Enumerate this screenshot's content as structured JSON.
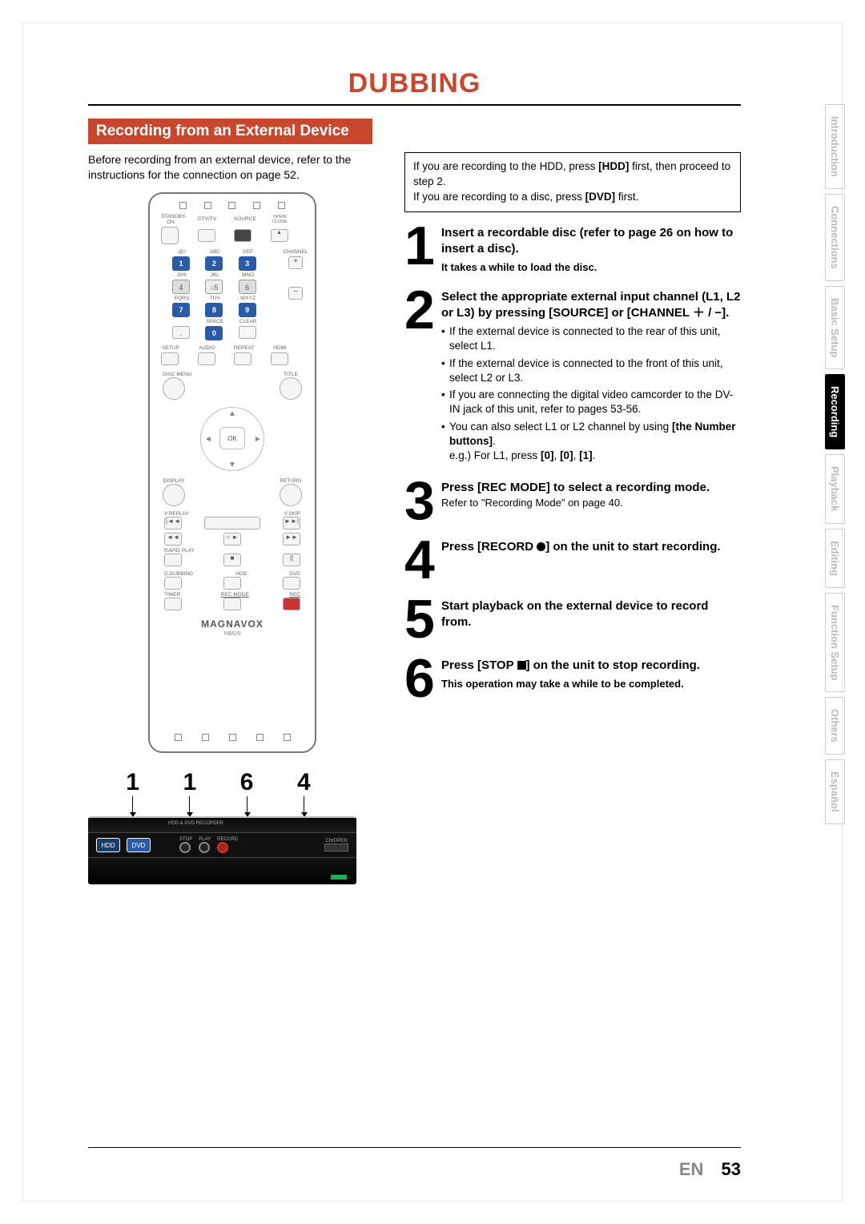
{
  "title": "DUBBING",
  "section_header": "Recording from an External Device",
  "intro": "Before recording from an external device, refer to the instructions for the connection on page 52.",
  "note_box": {
    "line1a": "If you are recording to the HDD, press ",
    "line1b": "[HDD]",
    "line1c": " first, then proceed to step 2.",
    "line2a": "If you are recording to a disc, press ",
    "line2b": "[DVD]",
    "line2c": " first."
  },
  "steps": {
    "s1": {
      "num": "1",
      "head": "Insert a recordable disc (refer to page 26 on how to insert a disc).",
      "sub": "It takes a while to load the disc."
    },
    "s2": {
      "num": "2",
      "head": "Select the appropriate external input channel (L1, L2 or L3) by pressing [SOURCE] or [CHANNEL ＋ / −].",
      "b1": "If the external device is connected to the rear of this unit, select L1.",
      "b2": "If the external device is connected to the front of this unit, select L2 or L3.",
      "b3": "If you are connecting the digital video camcorder to the DV-IN jack of this unit, refer to pages 53-56.",
      "b4a": "You can also select L1 or L2 channel by using ",
      "b4b": "[the Number buttons]",
      "b4c": ".",
      "b4eg_a": "e.g.) For L1, press ",
      "b4eg_b": "[0]",
      "b4eg_c": ", ",
      "b4eg_d": "[0]",
      "b4eg_e": ", ",
      "b4eg_f": "[1]",
      "b4eg_g": "."
    },
    "s3": {
      "num": "3",
      "head": "Press [REC MODE] to select a recording mode.",
      "ref": "Refer to \"Recording Mode\" on page 40."
    },
    "s4": {
      "num": "4",
      "head_a": "Press [RECORD ",
      "head_b": "] on the unit to start recording."
    },
    "s5": {
      "num": "5",
      "head": "Start playback on the external device to record from."
    },
    "s6": {
      "num": "6",
      "head_a": "Press [STOP ",
      "head_b": "] on the unit to stop recording.",
      "sub": "This operation may take a while to be completed."
    }
  },
  "remote": {
    "row1": {
      "standby": "STANDBY-ON",
      "dtv": "DTV/TV",
      "source": "SOURCE",
      "open": "OPEN/\nCLOSE"
    },
    "numpad": {
      "r1l": [
        ".@/:",
        "ABC",
        "DEF"
      ],
      "r1n": [
        "1",
        "2",
        "3"
      ],
      "r2l": [
        "GHI",
        "JKL",
        "MNO"
      ],
      "r2n": [
        "4",
        "5",
        "6"
      ],
      "r3l": [
        "PQRS",
        "TUV",
        "WXYZ"
      ],
      "r3n": [
        "7",
        "8",
        "9"
      ],
      "r4l": [
        "",
        "SPACE",
        "CLEAR"
      ],
      "r4n": [
        ".",
        "0",
        ""
      ]
    },
    "channel": "CHANNEL",
    "plus": "+",
    "minus": "−",
    "setup": "SETUP",
    "audio": "AUDIO",
    "repeat": "REPEAT",
    "hdmi": "HDMI",
    "discmenu": "DISC MENU",
    "titlemenu": "TITLE",
    "display": "DISPLAY",
    "return": "RETURN",
    "ok": "OK",
    "vreplay": "V.REPLAY",
    "vskip": "V.SKIP",
    "rapid": "RAPID PLAY",
    "dubbing": "D.DUBBING",
    "hdd": "HDD",
    "dvd": "DVD",
    "timer": "TIMER",
    "recmode": "REC MODE",
    "rec": "REC",
    "brand": "MAGNAVOX",
    "model": "NB820"
  },
  "device_nums": [
    "1",
    "1",
    "6",
    "4"
  ],
  "device": {
    "hdd": "HDD",
    "dvd": "DVD",
    "stop": "STOP",
    "play": "PLAY",
    "record": "RECORD",
    "chopen": "CH/OPEN"
  },
  "tabs": [
    "Introduction",
    "Connections",
    "Basic Setup",
    "Recording",
    "Playback",
    "Editing",
    "Function Setup",
    "Others",
    "Español"
  ],
  "tabs_active": "Recording",
  "footer": {
    "lang": "EN",
    "page": "53"
  }
}
